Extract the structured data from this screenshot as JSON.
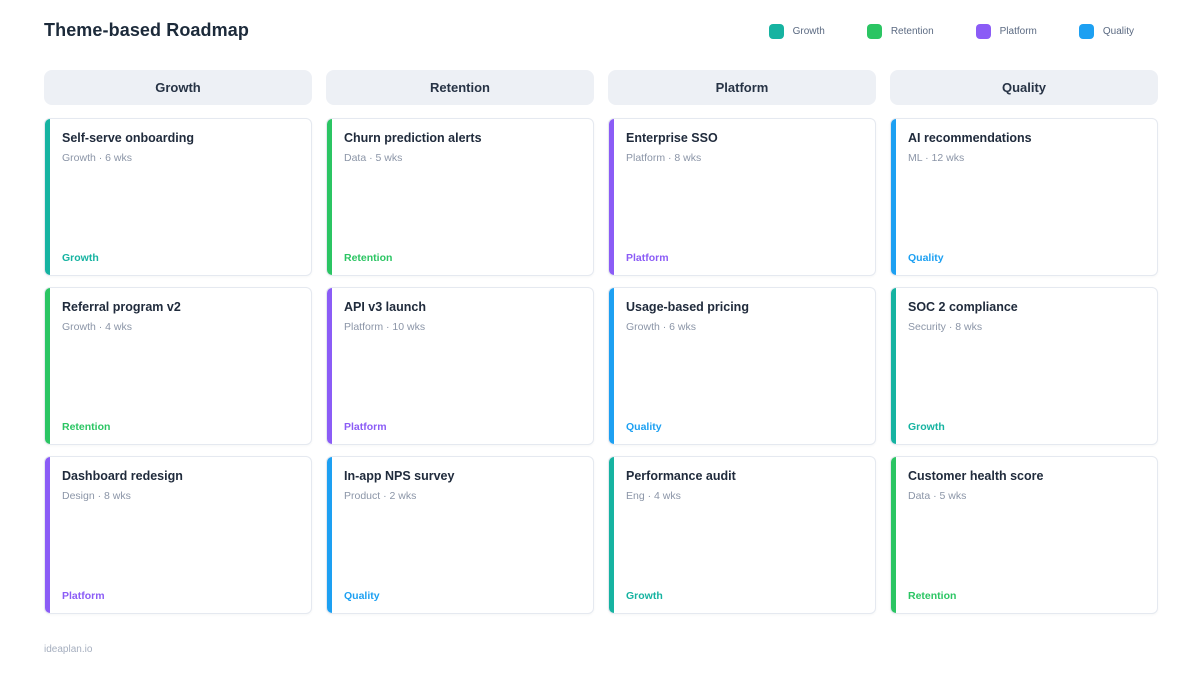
{
  "page": {
    "title": "Theme-based Roadmap",
    "footer": "ideaplan.io"
  },
  "theme_colors": {
    "growth": "#16b3a1",
    "retention": "#2bc563",
    "platform": "#8b5cf6",
    "quality": "#1da0f2"
  },
  "legend": [
    {
      "key": "growth",
      "label": "Growth"
    },
    {
      "key": "retention",
      "label": "Retention"
    },
    {
      "key": "platform",
      "label": "Platform"
    },
    {
      "key": "quality",
      "label": "Quality"
    }
  ],
  "columns": [
    {
      "header": "Growth",
      "cards": [
        {
          "title": "Self-serve onboarding",
          "meta": "Growth · 6 wks",
          "tag": "Growth",
          "theme": "growth"
        },
        {
          "title": "Referral program v2",
          "meta": "Growth · 4 wks",
          "tag": "Retention",
          "theme": "retention"
        },
        {
          "title": "Dashboard redesign",
          "meta": "Design · 8 wks",
          "tag": "Platform",
          "theme": "platform"
        }
      ]
    },
    {
      "header": "Retention",
      "cards": [
        {
          "title": "Churn prediction alerts",
          "meta": "Data · 5 wks",
          "tag": "Retention",
          "theme": "retention"
        },
        {
          "title": "API v3 launch",
          "meta": "Platform · 10 wks",
          "tag": "Platform",
          "theme": "platform"
        },
        {
          "title": "In-app NPS survey",
          "meta": "Product · 2 wks",
          "tag": "Quality",
          "theme": "quality"
        }
      ]
    },
    {
      "header": "Platform",
      "cards": [
        {
          "title": "Enterprise SSO",
          "meta": "Platform · 8 wks",
          "tag": "Platform",
          "theme": "platform"
        },
        {
          "title": "Usage-based pricing",
          "meta": "Growth · 6 wks",
          "tag": "Quality",
          "theme": "quality"
        },
        {
          "title": "Performance audit",
          "meta": "Eng · 4 wks",
          "tag": "Growth",
          "theme": "growth"
        }
      ]
    },
    {
      "header": "Quality",
      "cards": [
        {
          "title": "AI recommendations",
          "meta": "ML · 12 wks",
          "tag": "Quality",
          "theme": "quality"
        },
        {
          "title": "SOC 2 compliance",
          "meta": "Security · 8 wks",
          "tag": "Growth",
          "theme": "growth"
        },
        {
          "title": "Customer health score",
          "meta": "Data · 5 wks",
          "tag": "Retention",
          "theme": "retention"
        }
      ]
    }
  ]
}
